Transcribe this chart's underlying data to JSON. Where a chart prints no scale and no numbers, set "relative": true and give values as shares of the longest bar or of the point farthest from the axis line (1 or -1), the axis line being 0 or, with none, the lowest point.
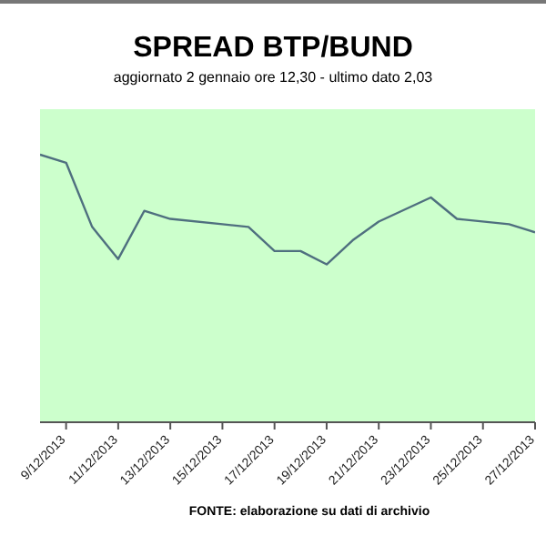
{
  "chart_data": {
    "type": "line",
    "title": "SPREAD BTP/BUND",
    "subtitle": "aggiornato 2 gennaio ore 12,30 - ultimo dato 2,03",
    "relative": true,
    "x": [
      "2013-12-08",
      "2013-12-09",
      "2013-12-10",
      "2013-12-11",
      "2013-12-12",
      "2013-12-13",
      "2013-12-15",
      "2013-12-16",
      "2013-12-17",
      "2013-12-18",
      "2013-12-19",
      "2013-12-20",
      "2013-12-21",
      "2013-12-23",
      "2013-12-24",
      "2013-12-26",
      "2013-12-27"
    ],
    "series": [
      {
        "color": "#4f6f7f",
        "values": [
          1,
          0.97,
          0.73,
          0.61,
          0.79,
          0.76,
          0.74,
          0.73,
          0.64,
          0.64,
          0.59,
          0.68,
          0.75,
          0.84,
          0.76,
          0.74,
          0.71
        ]
      }
    ],
    "xlim": [
      "2013-12-08",
      "2013-12-27"
    ],
    "xticks": [
      {
        "value": "2013-12-09",
        "label": "9/12/2013"
      },
      {
        "value": "2013-12-11",
        "label": "11/12/2013"
      },
      {
        "value": "2013-12-13",
        "label": "13/12/2013"
      },
      {
        "value": "2013-12-15",
        "label": "15/12/2013"
      },
      {
        "value": "2013-12-17",
        "label": "17/12/2013"
      },
      {
        "value": "2013-12-19",
        "label": "19/12/2013"
      },
      {
        "value": "2013-12-21",
        "label": "21/12/2013"
      },
      {
        "value": "2013-12-23",
        "label": "23/12/2013"
      },
      {
        "value": "2013-12-25",
        "label": "25/12/2013"
      },
      {
        "value": "2013-12-27",
        "label": "27/12/2013"
      }
    ],
    "marker": "none",
    "line_style": "solid",
    "annotations": [
      "FONTE: elaborazione su dati di archivio"
    ]
  }
}
